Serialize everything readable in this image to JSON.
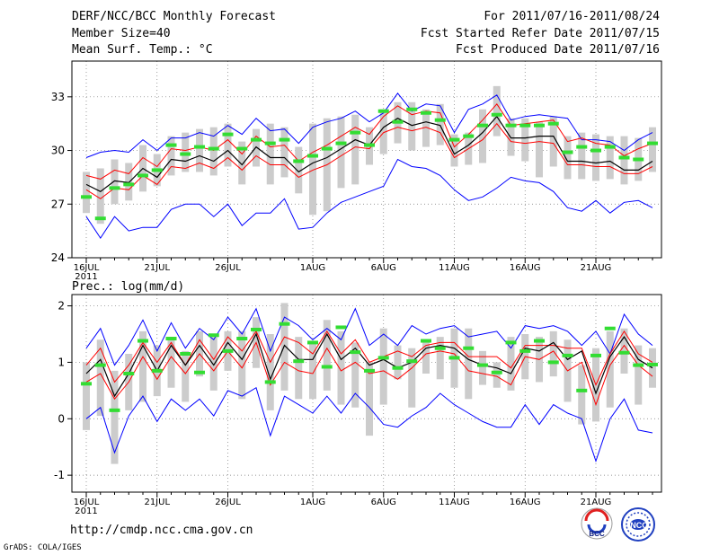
{
  "header": {
    "title": "DERF/NCC/BCC Monthly Forecast",
    "member_size": "Member Size=40",
    "variable_top": "Mean Surf. Temp.: °C",
    "period": "For 2011/07/16-2011/08/24",
    "started": "Fcst Started Refer Date 2011/07/15",
    "produced": "Fcst Produced Date 2011/07/16"
  },
  "footer": {
    "url": "http://cmdp.ncc.cma.gov.cn",
    "grads": "GrADS: COLA/IGES",
    "logo_bcc": "BCC",
    "logo_ncc": "NCC"
  },
  "colors": {
    "mean": "#000000",
    "spread": "#ff0000",
    "range": "#0000ff",
    "box": "#cccccc",
    "obs": "#33dd33"
  },
  "chart_data": [
    {
      "type": "line",
      "title": "Mean Surf. Temp.: °C",
      "x_tick_labels": [
        "16JUL",
        "21JUL",
        "26JUL",
        "1AUG",
        "6AUG",
        "11AUG",
        "16AUG",
        "21AUG"
      ],
      "x_year_label": "2011",
      "x_tick_days": [
        0,
        5,
        10,
        16,
        21,
        26,
        31,
        36
      ],
      "ylim": [
        24,
        35
      ],
      "yticks": [
        24,
        27,
        30,
        33
      ],
      "series": [
        {
          "name": "max",
          "values": [
            29.6,
            29.9,
            30.0,
            29.9,
            30.6,
            30.0,
            30.7,
            30.7,
            31.0,
            30.8,
            31.4,
            30.9,
            31.8,
            31.1,
            31.2,
            30.4,
            31.3,
            31.6,
            31.8,
            32.2,
            31.6,
            32.1,
            33.2,
            32.2,
            32.6,
            32.5,
            31.0,
            32.3,
            32.6,
            33.1,
            31.7,
            31.9,
            32.0,
            31.9,
            31.8,
            30.6,
            30.6,
            30.5,
            30.0,
            30.6,
            31.0
          ]
        },
        {
          "name": "p75",
          "values": [
            28.6,
            28.4,
            28.9,
            28.7,
            29.6,
            29.1,
            30.1,
            30.0,
            30.2,
            30.0,
            30.6,
            29.8,
            30.8,
            30.2,
            30.3,
            29.4,
            29.9,
            30.3,
            30.8,
            31.3,
            30.9,
            31.9,
            32.5,
            32.0,
            32.2,
            32.1,
            30.2,
            30.9,
            31.7,
            32.6,
            31.4,
            31.5,
            31.6,
            31.7,
            30.5,
            30.7,
            30.4,
            30.3,
            29.7,
            30.1,
            30.4
          ]
        },
        {
          "name": "mean",
          "values": [
            28.1,
            27.7,
            28.3,
            28.2,
            29.0,
            28.5,
            29.5,
            29.4,
            29.7,
            29.4,
            30.0,
            29.2,
            30.2,
            29.6,
            29.6,
            28.8,
            29.3,
            29.6,
            30.1,
            30.6,
            30.3,
            31.3,
            31.8,
            31.4,
            31.6,
            31.4,
            29.8,
            30.3,
            31.0,
            31.9,
            30.7,
            30.7,
            30.8,
            30.8,
            29.4,
            29.4,
            29.3,
            29.4,
            28.9,
            28.9,
            29.4
          ]
        },
        {
          "name": "p25",
          "values": [
            27.8,
            27.3,
            27.9,
            27.8,
            28.6,
            28.1,
            29.1,
            29.0,
            29.3,
            29.0,
            29.6,
            28.9,
            29.7,
            29.2,
            29.2,
            28.5,
            28.9,
            29.2,
            29.7,
            30.2,
            30.1,
            31.0,
            31.3,
            31.1,
            31.3,
            31.0,
            29.6,
            30.1,
            30.6,
            31.5,
            30.5,
            30.4,
            30.5,
            30.4,
            29.2,
            29.2,
            29.1,
            29.1,
            28.7,
            28.7,
            29.1
          ]
        },
        {
          "name": "min",
          "values": [
            26.3,
            25.1,
            26.3,
            25.5,
            25.7,
            25.7,
            26.7,
            27.0,
            27.0,
            26.3,
            27.0,
            25.8,
            26.5,
            26.5,
            27.3,
            25.6,
            25.7,
            26.5,
            27.1,
            27.4,
            27.7,
            28.0,
            29.5,
            29.1,
            29.0,
            28.6,
            27.8,
            27.2,
            27.4,
            27.9,
            28.5,
            28.3,
            28.2,
            27.7,
            26.8,
            26.6,
            27.2,
            26.5,
            27.1,
            27.2,
            26.8
          ]
        },
        {
          "name": "obs",
          "values": [
            27.4,
            26.2,
            27.9,
            28.1,
            28.6,
            28.9,
            30.3,
            29.8,
            30.2,
            30.1,
            30.9,
            30.1,
            30.6,
            30.4,
            30.6,
            29.4,
            29.7,
            30.1,
            30.4,
            31.0,
            30.3,
            32.2,
            31.6,
            32.3,
            32.1,
            31.7,
            30.6,
            30.8,
            31.4,
            32.0,
            31.4,
            31.4,
            31.4,
            31.5,
            29.9,
            30.2,
            30.0,
            30.2,
            29.6,
            29.5,
            30.4
          ]
        }
      ],
      "boxes": {
        "low": [
          26.5,
          25.9,
          27.0,
          27.2,
          27.7,
          28.0,
          28.6,
          28.8,
          28.8,
          28.6,
          29.1,
          28.1,
          29.1,
          28.1,
          28.5,
          27.6,
          26.4,
          26.6,
          27.9,
          28.1,
          29.2,
          29.8,
          30.4,
          30.0,
          30.2,
          30.3,
          29.1,
          29.2,
          29.3,
          30.8,
          29.7,
          29.4,
          28.5,
          29.1,
          28.4,
          28.4,
          28.3,
          28.4,
          28.1,
          28.3,
          28.8
        ],
        "high": [
          28.8,
          29.0,
          29.5,
          29.3,
          30.3,
          29.8,
          30.8,
          31.0,
          31.2,
          31.3,
          31.5,
          30.5,
          31.2,
          31.5,
          31.3,
          30.2,
          31.5,
          31.8,
          31.9,
          32.0,
          31.3,
          32.3,
          32.7,
          32.7,
          32.3,
          32.6,
          30.9,
          31.0,
          32.3,
          33.6,
          31.8,
          31.8,
          31.6,
          31.9,
          30.8,
          31.0,
          30.9,
          30.8,
          30.8,
          30.7,
          31.3
        ]
      }
    },
    {
      "type": "line",
      "title": "Prec.: log(mm/d)",
      "x_tick_labels": [
        "16JUL",
        "21JUL",
        "26JUL",
        "1AUG",
        "6AUG",
        "11AUG",
        "16AUG",
        "21AUG"
      ],
      "x_year_label": "2011",
      "x_tick_days": [
        0,
        5,
        10,
        16,
        21,
        26,
        31,
        36
      ],
      "ylim": [
        -1.3,
        2.2
      ],
      "yticks": [
        -1,
        0,
        1,
        2
      ],
      "series": [
        {
          "name": "max",
          "values": [
            1.25,
            1.6,
            0.95,
            1.3,
            1.75,
            1.2,
            1.7,
            1.25,
            1.6,
            1.4,
            1.8,
            1.5,
            1.95,
            1.2,
            1.8,
            1.65,
            1.4,
            1.6,
            1.4,
            1.95,
            1.3,
            1.5,
            1.3,
            1.65,
            1.5,
            1.6,
            1.65,
            1.45,
            1.5,
            1.55,
            1.25,
            1.65,
            1.6,
            1.65,
            1.55,
            1.3,
            1.55,
            1.15,
            1.85,
            1.5,
            1.3
          ]
        },
        {
          "name": "p75",
          "values": [
            0.95,
            1.25,
            0.65,
            0.95,
            1.35,
            1.0,
            1.35,
            0.95,
            1.4,
            1.05,
            1.45,
            1.2,
            1.55,
            1.0,
            1.45,
            1.35,
            1.15,
            1.55,
            1.15,
            1.4,
            1.0,
            1.1,
            1.2,
            1.1,
            1.3,
            1.35,
            1.35,
            1.1,
            1.1,
            1.1,
            0.9,
            1.3,
            1.3,
            1.3,
            1.25,
            1.25,
            0.6,
            1.15,
            1.55,
            1.15,
            1.0
          ]
        },
        {
          "name": "mean",
          "values": [
            0.8,
            1.05,
            0.4,
            0.8,
            1.3,
            0.85,
            1.3,
            0.95,
            1.3,
            0.95,
            1.35,
            1.05,
            1.5,
            0.7,
            1.3,
            1.05,
            1.05,
            1.5,
            1.05,
            1.25,
            0.95,
            1.05,
            0.9,
            1.0,
            1.25,
            1.3,
            1.25,
            1.05,
            0.95,
            0.9,
            0.8,
            1.25,
            1.2,
            1.35,
            1.05,
            1.2,
            0.45,
            1.1,
            1.45,
            1.05,
            0.9
          ]
        },
        {
          "name": "p25",
          "values": [
            0.65,
            0.8,
            0.35,
            0.65,
            1.1,
            0.7,
            1.1,
            0.8,
            1.15,
            0.85,
            1.2,
            0.9,
            1.35,
            0.6,
            1.0,
            0.85,
            0.8,
            1.25,
            0.85,
            1.0,
            0.8,
            0.85,
            0.7,
            0.9,
            1.15,
            1.2,
            1.15,
            0.85,
            0.8,
            0.75,
            0.6,
            1.1,
            1.05,
            1.2,
            0.85,
            1.0,
            0.25,
            0.95,
            1.3,
            0.95,
            0.75
          ]
        },
        {
          "name": "min",
          "values": [
            0.0,
            0.2,
            -0.6,
            0.05,
            0.4,
            -0.05,
            0.35,
            0.15,
            0.35,
            0.05,
            0.5,
            0.4,
            0.55,
            -0.3,
            0.4,
            0.25,
            0.1,
            0.4,
            0.1,
            0.45,
            0.2,
            -0.1,
            -0.15,
            0.05,
            0.2,
            0.45,
            0.25,
            0.1,
            -0.05,
            -0.15,
            -0.15,
            0.25,
            -0.1,
            0.25,
            0.1,
            0.0,
            -0.75,
            0.0,
            0.35,
            -0.2,
            -0.25
          ]
        },
        {
          "name": "obs",
          "values": [
            0.62,
            0.95,
            0.15,
            0.8,
            1.38,
            0.85,
            1.42,
            1.15,
            0.82,
            1.48,
            1.2,
            1.42,
            1.58,
            0.65,
            1.68,
            1.02,
            1.35,
            0.92,
            1.62,
            1.18,
            0.85,
            1.08,
            0.9,
            1.02,
            1.38,
            1.25,
            1.08,
            1.25,
            0.95,
            0.82,
            1.35,
            1.2,
            1.38,
            1.0,
            1.12,
            0.5,
            1.12,
            1.6,
            1.17,
            0.95,
            0.96
          ]
        }
      ],
      "boxes": {
        "low": [
          -0.2,
          0.05,
          -0.8,
          0.15,
          0.3,
          0.4,
          0.55,
          0.3,
          0.75,
          0.5,
          0.85,
          0.35,
          0.9,
          0.15,
          0.5,
          0.35,
          0.35,
          0.5,
          0.25,
          0.2,
          -0.3,
          0.25,
          0.7,
          0.2,
          0.8,
          0.7,
          0.55,
          0.35,
          0.6,
          0.55,
          0.5,
          0.7,
          0.65,
          0.75,
          0.3,
          -0.1,
          -0.05,
          0.2,
          0.8,
          0.25,
          0.55
        ],
        "high": [
          1.0,
          1.4,
          0.85,
          1.15,
          1.55,
          1.3,
          1.45,
          1.2,
          1.55,
          1.45,
          1.55,
          1.55,
          1.8,
          1.5,
          2.05,
          1.45,
          1.35,
          1.75,
          1.55,
          1.35,
          1.0,
          1.6,
          1.3,
          1.25,
          1.4,
          1.45,
          1.6,
          1.6,
          1.2,
          1.0,
          1.45,
          1.5,
          1.45,
          1.55,
          1.4,
          0.95,
          1.25,
          1.55,
          1.6,
          1.3,
          1.25
        ]
      }
    }
  ]
}
